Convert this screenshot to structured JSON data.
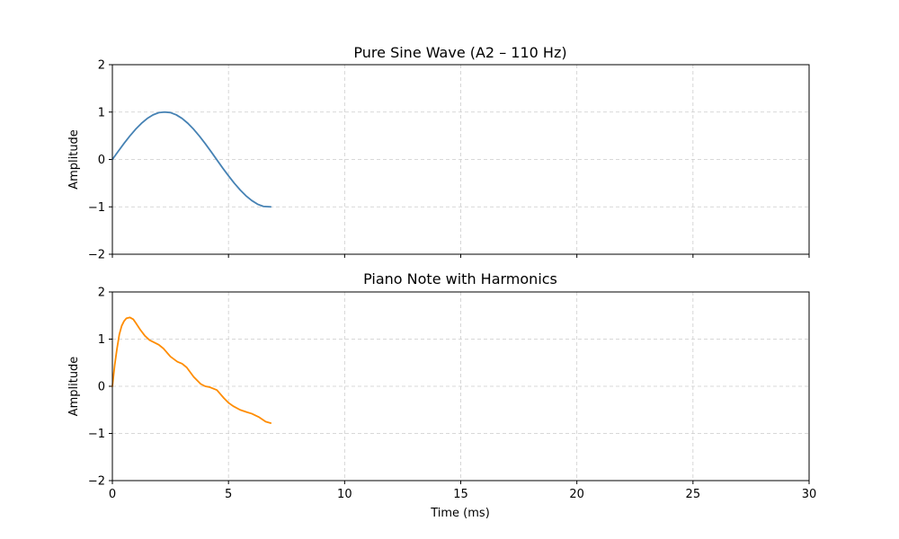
{
  "chart_data": [
    {
      "type": "line",
      "title": "Pure Sine Wave (A2 – 110 Hz)",
      "xlabel": "",
      "ylabel": "Amplitude",
      "xlim": [
        0,
        30
      ],
      "ylim": [
        -2,
        2
      ],
      "xticks": [
        0,
        5,
        10,
        15,
        20,
        25,
        30
      ],
      "yticks": [
        -2,
        -1,
        0,
        1,
        2
      ],
      "show_xtick_labels": false,
      "grid": true,
      "color": "#4682b4",
      "x": [
        0.0,
        0.25,
        0.5,
        0.75,
        1.0,
        1.25,
        1.5,
        1.75,
        2.0,
        2.25,
        2.5,
        2.75,
        3.0,
        3.25,
        3.5,
        3.75,
        4.0,
        4.25,
        4.5,
        4.75,
        5.0,
        5.25,
        5.5,
        5.75,
        6.0,
        6.25,
        6.5,
        6.818
      ],
      "y": [
        0.0,
        0.171,
        0.338,
        0.494,
        0.637,
        0.761,
        0.864,
        0.941,
        0.988,
        1.0,
        0.989,
        0.942,
        0.866,
        0.763,
        0.637,
        0.492,
        0.333,
        0.165,
        -0.008,
        -0.181,
        -0.345,
        -0.501,
        -0.642,
        -0.766,
        -0.866,
        -0.944,
        -0.99,
        -1.0
      ]
    },
    {
      "type": "line",
      "title": "Piano Note with Harmonics",
      "xlabel": "Time (ms)",
      "ylabel": "Amplitude",
      "xlim": [
        0,
        30
      ],
      "ylim": [
        -2,
        2
      ],
      "xticks": [
        0,
        5,
        10,
        15,
        20,
        25,
        30
      ],
      "yticks": [
        -2,
        -1,
        0,
        1,
        2
      ],
      "show_xtick_labels": true,
      "grid": true,
      "color": "#ff8c00",
      "x": [
        0.0,
        0.1,
        0.2,
        0.3,
        0.4,
        0.5,
        0.6,
        0.75,
        0.9,
        1.0,
        1.2,
        1.4,
        1.6,
        1.8,
        2.0,
        2.2,
        2.5,
        2.8,
        3.0,
        3.2,
        3.5,
        3.8,
        4.0,
        4.2,
        4.5,
        4.8,
        5.0,
        5.2,
        5.5,
        5.8,
        6.0,
        6.3,
        6.6,
        6.818
      ],
      "y": [
        0.0,
        0.45,
        0.8,
        1.1,
        1.28,
        1.38,
        1.44,
        1.46,
        1.42,
        1.35,
        1.2,
        1.07,
        0.98,
        0.93,
        0.88,
        0.8,
        0.63,
        0.52,
        0.48,
        0.4,
        0.2,
        0.05,
        0.0,
        -0.02,
        -0.08,
        -0.25,
        -0.35,
        -0.42,
        -0.5,
        -0.55,
        -0.58,
        -0.65,
        -0.75,
        -0.78
      ]
    }
  ]
}
